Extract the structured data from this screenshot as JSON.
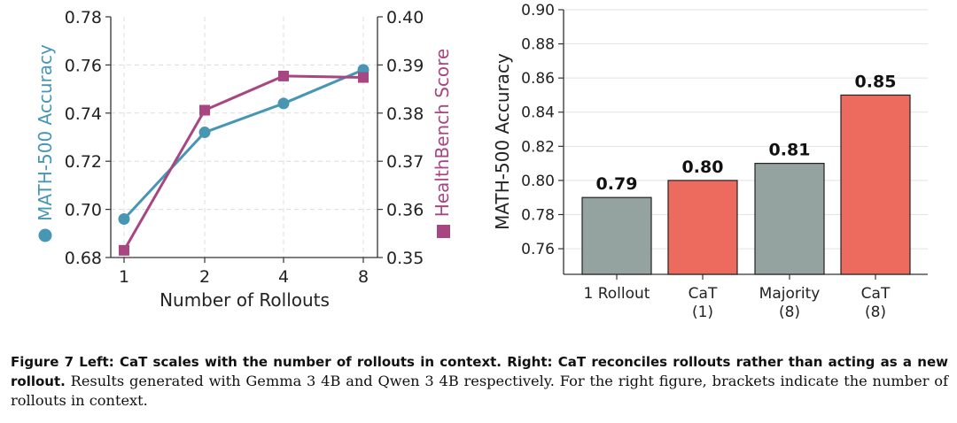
{
  "chart_data": [
    {
      "type": "line",
      "panel": "left",
      "xlabel": "Number of Rollouts",
      "categories": [
        "1",
        "2",
        "4",
        "8"
      ],
      "series": [
        {
          "name": "MATH-500 Accuracy",
          "axis": "left",
          "color": "#4696b4",
          "marker": "circle",
          "values": [
            0.696,
            0.732,
            0.744,
            0.758
          ],
          "ylim": [
            0.68,
            0.78
          ],
          "yticks": [
            "0.68",
            "0.70",
            "0.72",
            "0.74",
            "0.76",
            "0.78"
          ]
        },
        {
          "name": "HealthBench Score",
          "axis": "right",
          "color": "#a84681",
          "marker": "square",
          "values": [
            0.3515,
            0.3806,
            0.3877,
            0.3874
          ],
          "ylim": [
            0.35,
            0.4
          ],
          "yticks": [
            "0.35",
            "0.36",
            "0.37",
            "0.38",
            "0.39",
            "0.40"
          ]
        }
      ],
      "grid": true
    },
    {
      "type": "bar",
      "panel": "right",
      "ylabel": "MATH-500 Accuracy",
      "ylim": [
        0.745,
        0.9
      ],
      "yticks": [
        "0.76",
        "0.78",
        "0.80",
        "0.82",
        "0.84",
        "0.86",
        "0.88",
        "0.90"
      ],
      "categories": [
        [
          "1 Rollout"
        ],
        [
          "CaT",
          "(1)"
        ],
        [
          "Majority",
          "(8)"
        ],
        [
          "CaT",
          "(8)"
        ]
      ],
      "values": [
        0.79,
        0.8,
        0.81,
        0.85
      ],
      "value_labels": [
        "0.79",
        "0.80",
        "0.81",
        "0.85"
      ],
      "colors": [
        "#94a3a0",
        "#ec6a5e",
        "#94a3a0",
        "#ec6a5e"
      ],
      "grid": true
    }
  ],
  "caption": {
    "lead": "Figure 7   Left: CaT scales with the number of rollouts in context.   Right: CaT reconciles rollouts rather than acting as a new rollout.",
    "body": " Results generated with Gemma 3 4B and Qwen 3 4B respectively. For the right figure, brackets indicate the number of rollouts in context."
  }
}
